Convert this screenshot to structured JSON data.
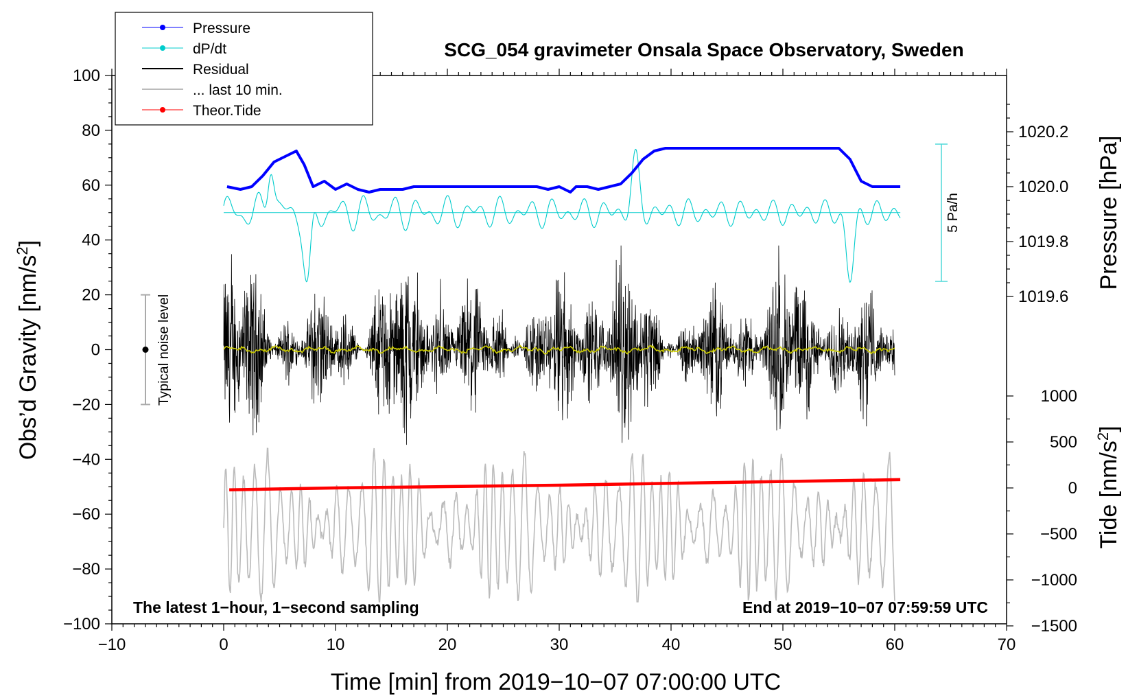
{
  "chart_data": {
    "type": "line",
    "title": "SCG_054 gravimeter Onsala Space Observatory, Sweden",
    "xlabel": "Time [min] from 2019−10−07 07:00:00 UTC",
    "ylabel_left": "Obs’d Gravity [nm/s",
    "ylabel_left_sup": "2",
    "ylabel_left_end": "]",
    "ylabel_right_pressure": "Pressure [hPa]",
    "ylabel_right_tide": "Tide [nm/s",
    "ylabel_right_tide_sup": "2",
    "ylabel_right_tide_end": "]",
    "xlim": [
      -10,
      70
    ],
    "ylim_left": [
      -100,
      100
    ],
    "pressure_ticks": [
      1019.6,
      1019.8,
      1020.0,
      1020.2
    ],
    "tide_ticks": [
      -1500,
      -1000,
      -500,
      0,
      500,
      1000
    ],
    "x_tick_labels": [
      "−10",
      "0",
      "10",
      "20",
      "30",
      "40",
      "50",
      "60",
      "70"
    ],
    "y_tick_labels": [
      "−100",
      "−80",
      "−60",
      "−40",
      "−20",
      "0",
      "20",
      "40",
      "60",
      "80",
      "100"
    ],
    "pressure_tick_labels": [
      "1019.6",
      "1019.8",
      "1020.0",
      "1020.2"
    ],
    "tide_tick_labels": [
      "−1500",
      "−1000",
      "−500",
      "0",
      "500",
      "1000"
    ],
    "legend": {
      "placement": "top-left",
      "entries": [
        {
          "label": "Pressure",
          "color": "#0000ff",
          "marker": true
        },
        {
          "label": "dP/dt",
          "color": "#00cccc",
          "marker": true
        },
        {
          "label": "Residual",
          "color": "#000000",
          "marker": false
        },
        {
          "label": "... last 10 min.",
          "color": "#bbbbbb",
          "marker": false
        },
        {
          "label": "Theor.Tide",
          "color": "#ff0000",
          "marker": true
        }
      ]
    },
    "annotations": {
      "bottom_left": "The latest 1−hour, 1−second sampling",
      "bottom_right": "End at 2019−10−07 07:59:59 UTC",
      "noise_label": "Typical noise level",
      "noise_range_nm_s2": [
        -20,
        20
      ],
      "dpdt_scale_label": "5 Pa/h"
    },
    "series": [
      {
        "name": "Pressure",
        "axis": "pressure_hPa",
        "color": "#0000ff",
        "x": [
          0.3,
          1.5,
          2.5,
          3.5,
          4.5,
          5.5,
          6.5,
          7.2,
          8.0,
          9.0,
          10.0,
          11.0,
          12.0,
          13.0,
          14.0,
          15.0,
          16.0,
          17.0,
          18.0,
          19.0,
          20.0,
          21.0,
          22.0,
          23.0,
          24.0,
          25.0,
          26.0,
          27.0,
          28.0,
          29.0,
          30.0,
          31.0,
          31.5,
          32.5,
          33.5,
          34.5,
          35.5,
          36.5,
          37.5,
          38.5,
          39.5,
          40.5,
          42.0,
          44.0,
          46.0,
          48.0,
          50.0,
          52.0,
          54.0,
          55.0,
          56.0,
          57.0,
          58.0,
          59.0,
          60.0,
          60.5
        ],
        "values": [
          1020.0,
          1019.99,
          1020.0,
          1020.04,
          1020.09,
          1020.11,
          1020.13,
          1020.08,
          1020.0,
          1020.02,
          1019.99,
          1020.01,
          1019.99,
          1019.98,
          1019.99,
          1019.99,
          1019.99,
          1020.0,
          1020.0,
          1020.0,
          1020.0,
          1020.0,
          1020.0,
          1020.0,
          1020.0,
          1020.0,
          1020.0,
          1020.0,
          1020.0,
          1019.99,
          1020.0,
          1019.98,
          1020.0,
          1020.0,
          1019.99,
          1020.0,
          1020.01,
          1020.05,
          1020.1,
          1020.13,
          1020.14,
          1020.14,
          1020.14,
          1020.14,
          1020.14,
          1020.14,
          1020.14,
          1020.14,
          1020.14,
          1020.14,
          1020.1,
          1020.02,
          1020.0,
          1020.0,
          1020.0,
          1020.0
        ]
      },
      {
        "name": "dP/dt",
        "axis": "left_offset",
        "color": "#00cccc",
        "baseline_nm_s2": 50,
        "range_nm_s2": [
          22,
          70
        ]
      },
      {
        "name": "Residual",
        "axis": "left",
        "color": "#000000",
        "range_nm_s2": [
          -40,
          38
        ],
        "x_range": [
          0,
          60
        ]
      },
      {
        "name": "Residual mean (last 10 min.)",
        "axis": "left",
        "color": "#cccc00",
        "range_nm_s2": [
          -2,
          2
        ],
        "x_range": [
          0,
          60
        ]
      },
      {
        "name": "... last 10 min.",
        "axis": "left_offset",
        "color": "#bbbbbb",
        "baseline_nm_s2": -65,
        "range_nm_s2": [
          -92,
          -35
        ],
        "x_range": [
          0,
          60
        ]
      },
      {
        "name": "Theor.Tide",
        "axis": "tide_nm_s2",
        "color": "#ff0000",
        "x": [
          0.5,
          10,
          20,
          30,
          40,
          50,
          60.5
        ],
        "values": [
          -20,
          0,
          15,
          30,
          50,
          70,
          90
        ]
      }
    ]
  }
}
